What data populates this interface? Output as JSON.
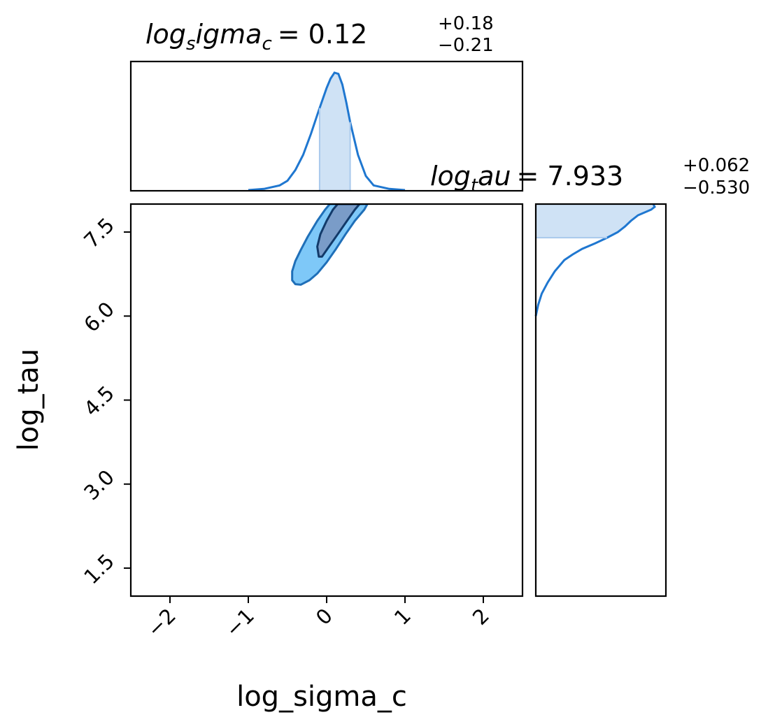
{
  "chart_data": {
    "type": "corner",
    "parameters": [
      "log_sigma_c",
      "log_tau"
    ],
    "xlabel": "log_sigma_c",
    "ylabel": "log_tau",
    "xlim": [
      -2.5,
      2.5
    ],
    "ylim": [
      1.0,
      8.0
    ],
    "xticks": [
      -2,
      -1,
      0,
      1,
      2
    ],
    "xtick_labels": [
      "−2",
      "−1",
      "0",
      "1",
      "2"
    ],
    "yticks": [
      1.5,
      3.0,
      4.5,
      6.0,
      7.5
    ],
    "ytick_labels": [
      "1.5",
      "3.0",
      "4.5",
      "6.0",
      "7.5"
    ],
    "colors": {
      "line": "#1f77d0",
      "band": "#cfe2f5",
      "contour_outer_fill": "#7ec8f8",
      "contour_outer_line": "#1f6fb8",
      "contour_inner_fill": "#7a9cc8",
      "contour_inner_line": "#123a6a"
    },
    "marginal_x": {
      "title_var": "log",
      "title_sub": "s",
      "title_rest": "igma",
      "title_sub2": "c",
      "title_value": "= 0.12",
      "title_plus": "+0.18",
      "title_minus": "−0.21",
      "median": 0.12,
      "err_plus": 0.18,
      "err_minus": 0.21,
      "band": [
        -0.09,
        0.3
      ],
      "x": [
        -1.0,
        -0.8,
        -0.6,
        -0.5,
        -0.4,
        -0.3,
        -0.2,
        -0.1,
        0.0,
        0.05,
        0.1,
        0.15,
        0.2,
        0.25,
        0.3,
        0.4,
        0.5,
        0.6,
        0.8,
        1.0
      ],
      "density": [
        0.0,
        0.01,
        0.04,
        0.08,
        0.17,
        0.3,
        0.48,
        0.68,
        0.87,
        0.95,
        1.0,
        0.99,
        0.9,
        0.75,
        0.58,
        0.3,
        0.12,
        0.04,
        0.01,
        0.0
      ]
    },
    "marginal_y": {
      "title_var": "log",
      "title_sub": "t",
      "title_rest": "au",
      "title_value": "= 7.933",
      "title_plus": "+0.062",
      "title_minus": "−0.530",
      "median": 7.933,
      "err_plus": 0.062,
      "err_minus": 0.53,
      "band": [
        7.4,
        7.99
      ],
      "y": [
        6.0,
        6.2,
        6.4,
        6.6,
        6.8,
        6.9,
        7.0,
        7.1,
        7.2,
        7.3,
        7.4,
        7.5,
        7.6,
        7.7,
        7.8,
        7.9,
        7.95,
        7.99
      ],
      "density": [
        0.0,
        0.02,
        0.05,
        0.1,
        0.16,
        0.2,
        0.24,
        0.31,
        0.39,
        0.5,
        0.6,
        0.69,
        0.75,
        0.8,
        0.86,
        0.97,
        1.0,
        0.99
      ]
    },
    "contours": [
      {
        "level": "outer",
        "points": [
          [
            -0.4,
            6.57
          ],
          [
            -0.44,
            6.64
          ],
          [
            -0.44,
            6.8
          ],
          [
            -0.4,
            6.98
          ],
          [
            -0.33,
            7.18
          ],
          [
            -0.24,
            7.42
          ],
          [
            -0.12,
            7.7
          ],
          [
            -0.02,
            7.9
          ],
          [
            0.04,
            8.0
          ],
          [
            0.52,
            8.0
          ],
          [
            0.48,
            7.9
          ],
          [
            0.36,
            7.7
          ],
          [
            0.24,
            7.46
          ],
          [
            0.12,
            7.2
          ],
          [
            0.0,
            6.96
          ],
          [
            -0.12,
            6.76
          ],
          [
            -0.22,
            6.64
          ],
          [
            -0.33,
            6.56
          ]
        ]
      },
      {
        "level": "inner",
        "points": [
          [
            -0.1,
            7.06
          ],
          [
            -0.12,
            7.24
          ],
          [
            -0.08,
            7.46
          ],
          [
            0.0,
            7.7
          ],
          [
            0.08,
            7.9
          ],
          [
            0.14,
            8.0
          ],
          [
            0.42,
            8.0
          ],
          [
            0.36,
            7.9
          ],
          [
            0.26,
            7.7
          ],
          [
            0.14,
            7.46
          ],
          [
            0.02,
            7.22
          ],
          [
            -0.06,
            7.06
          ]
        ]
      }
    ]
  }
}
